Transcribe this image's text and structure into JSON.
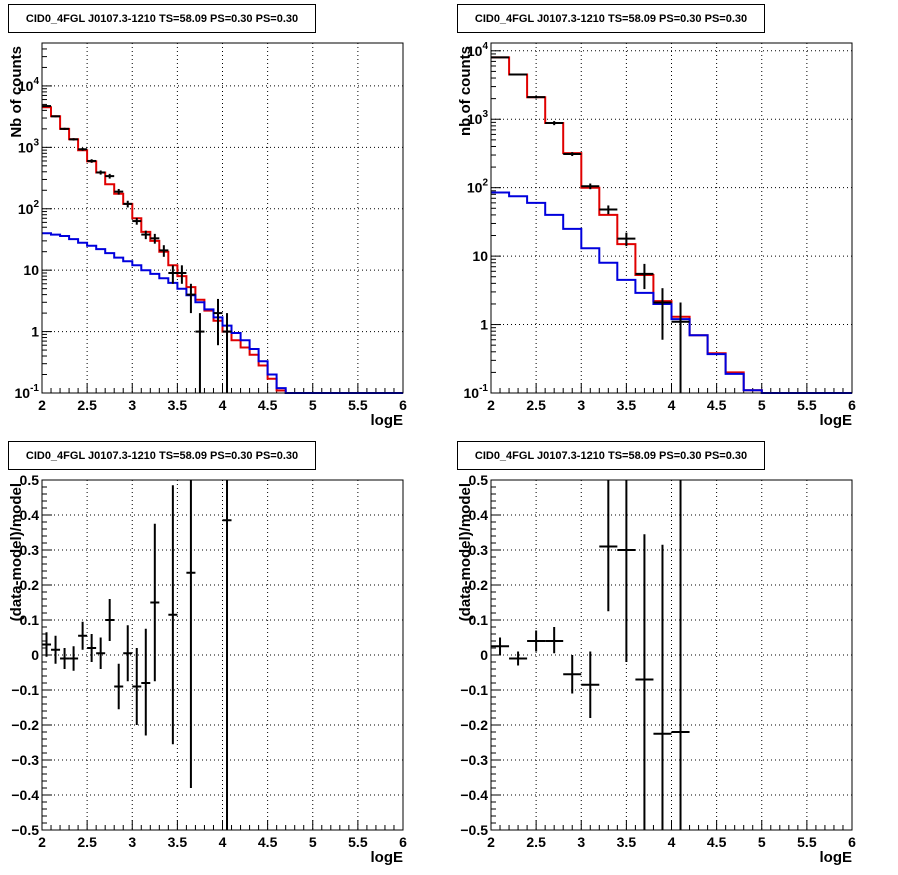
{
  "chart_data": [
    {
      "id": "top-left",
      "type": "line",
      "title": "CID0_4FGL J0107.3-1210 TS=58.09 PS=0.30 PS=0.30",
      "xlabel": "logE",
      "ylabel": "Nb of counts",
      "xlim": [
        2,
        6
      ],
      "ylim": [
        0.1,
        50000
      ],
      "ylog": true,
      "grid": true,
      "xticks": [
        "2",
        "2.5",
        "3",
        "3.5",
        "4",
        "4.5",
        "5",
        "5.5",
        "6"
      ],
      "yticks": [
        {
          "v": 0.1,
          "base": "10",
          "exp": "-1"
        },
        {
          "v": 1,
          "base": "1"
        },
        {
          "v": 10,
          "base": "10"
        },
        {
          "v": 100,
          "base": "10",
          "exp": "2"
        },
        {
          "v": 1000,
          "base": "10",
          "exp": "3"
        },
        {
          "v": 10000,
          "base": "10",
          "exp": "4"
        }
      ],
      "bin_edges": [
        2,
        2.1,
        2.2,
        2.3,
        2.4,
        2.5,
        2.6,
        2.7,
        2.8,
        2.9,
        3.0,
        3.1,
        3.2,
        3.3,
        3.4,
        3.5,
        3.6,
        3.7,
        3.8,
        3.9,
        4.0,
        4.1,
        4.2,
        4.3,
        4.4,
        4.5,
        4.6,
        4.7,
        4.8,
        4.9,
        5.0,
        5.1,
        5.2,
        5.3,
        5.4,
        5.5,
        5.6,
        5.7,
        5.8,
        5.9,
        6.0
      ],
      "series": [
        {
          "color": "#e00000",
          "values": [
            4500,
            3200,
            2000,
            1350,
            900,
            590,
            390,
            250,
            175,
            120,
            70,
            42,
            30,
            20,
            12,
            8,
            5.3,
            3.3,
            2.2,
            1.5,
            1.0,
            0.72,
            0.55,
            0.42,
            0.28,
            0.17,
            0.11,
            0.1,
            0.1,
            0.1,
            0.1,
            0.1,
            0.1,
            0.1,
            0.1,
            0.1,
            0.1,
            0.1,
            0.1,
            0.1
          ]
        },
        {
          "color": "#0000dd",
          "values": [
            40,
            38,
            36,
            32,
            28,
            25,
            22,
            19,
            16,
            14,
            12,
            10,
            8.7,
            7.4,
            6.2,
            5.0,
            3.9,
            3.0,
            2.3,
            1.7,
            1.25,
            0.95,
            0.72,
            0.52,
            0.33,
            0.2,
            0.12,
            0.1,
            0.1,
            0.1,
            0.1,
            0.1,
            0.1,
            0.1,
            0.1,
            0.1,
            0.1,
            0.1,
            0.1,
            0.1
          ]
        }
      ],
      "points": [
        {
          "x": 2.05,
          "y": 4700,
          "dx": 0.05,
          "lo": 4560,
          "hi": 4840
        },
        {
          "x": 2.15,
          "y": 3200,
          "dx": 0.05,
          "lo": 3090,
          "hi": 3310
        },
        {
          "x": 2.25,
          "y": 2000,
          "dx": 0.05,
          "lo": 1920,
          "hi": 2080
        },
        {
          "x": 2.35,
          "y": 1350,
          "dx": 0.05,
          "lo": 1290,
          "hi": 1410
        },
        {
          "x": 2.45,
          "y": 930,
          "dx": 0.05,
          "lo": 880,
          "hi": 980
        },
        {
          "x": 2.55,
          "y": 600,
          "dx": 0.05,
          "lo": 560,
          "hi": 640
        },
        {
          "x": 2.65,
          "y": 390,
          "dx": 0.05,
          "lo": 360,
          "hi": 420
        },
        {
          "x": 2.75,
          "y": 340,
          "dx": 0.05,
          "lo": 310,
          "hi": 370
        },
        {
          "x": 2.85,
          "y": 190,
          "dx": 0.05,
          "lo": 170,
          "hi": 210
        },
        {
          "x": 2.95,
          "y": 120,
          "dx": 0.05,
          "lo": 105,
          "hi": 135
        },
        {
          "x": 3.05,
          "y": 63,
          "dx": 0.05,
          "lo": 55,
          "hi": 71
        },
        {
          "x": 3.15,
          "y": 38,
          "dx": 0.05,
          "lo": 32,
          "hi": 44
        },
        {
          "x": 3.25,
          "y": 33,
          "dx": 0.05,
          "lo": 27,
          "hi": 39
        },
        {
          "x": 3.35,
          "y": 21,
          "dx": 0.05,
          "lo": 16.5,
          "hi": 25.5
        },
        {
          "x": 3.45,
          "y": 9,
          "dx": 0.05,
          "lo": 6,
          "hi": 12
        },
        {
          "x": 3.55,
          "y": 9,
          "dx": 0.05,
          "lo": 6,
          "hi": 12
        },
        {
          "x": 3.65,
          "y": 4,
          "dx": 0.05,
          "lo": 2,
          "hi": 6
        },
        {
          "x": 3.75,
          "y": 1,
          "dx": 0.05,
          "lo": 0.1,
          "hi": 2
        },
        {
          "x": 3.95,
          "y": 2,
          "dx": 0.05,
          "lo": 0.6,
          "hi": 3.4
        },
        {
          "x": 4.05,
          "y": 1,
          "dx": 0.05,
          "lo": 0.1,
          "hi": 2
        }
      ]
    },
    {
      "id": "top-right",
      "type": "line",
      "title": "CID0_4FGL J0107.3-1210 TS=58.09 PS=0.30 PS=0.30",
      "xlabel": "logE",
      "ylabel": "nb of counts",
      "xlim": [
        2,
        6
      ],
      "ylim": [
        0.1,
        13000
      ],
      "ylog": true,
      "grid": true,
      "xticks": [
        "2",
        "2.5",
        "3",
        "3.5",
        "4",
        "4.5",
        "5",
        "5.5",
        "6"
      ],
      "yticks": [
        {
          "v": 0.1,
          "base": "10",
          "exp": "-1"
        },
        {
          "v": 1,
          "base": "1"
        },
        {
          "v": 10,
          "base": "10"
        },
        {
          "v": 100,
          "base": "10",
          "exp": "2"
        },
        {
          "v": 1000,
          "base": "10",
          "exp": "3"
        },
        {
          "v": 10000,
          "base": "10",
          "exp": "4"
        }
      ],
      "bin_edges": [
        2,
        2.2,
        2.4,
        2.6,
        2.8,
        3.0,
        3.2,
        3.4,
        3.6,
        3.8,
        4.0,
        4.2,
        4.4,
        4.6,
        4.8,
        5.0,
        5.2,
        5.4,
        5.6,
        5.8,
        6.0
      ],
      "series": [
        {
          "color": "#e00000",
          "values": [
            8000,
            4500,
            2100,
            880,
            320,
            100,
            40,
            15,
            5.3,
            2.2,
            1.3,
            0.7,
            0.38,
            0.2,
            0.11,
            0.1,
            0.1,
            0.1,
            0.1,
            0.1
          ]
        },
        {
          "color": "#0000dd",
          "values": [
            85,
            75,
            60,
            40,
            25,
            13,
            8,
            4.5,
            2.9,
            2.0,
            1.2,
            0.7,
            0.37,
            0.19,
            0.11,
            0.1,
            0.1,
            0.1,
            0.1,
            0.1
          ]
        }
      ],
      "points": [
        {
          "x": 2.1,
          "y": 8000,
          "dx": 0.1,
          "lo": 7820,
          "hi": 8180
        },
        {
          "x": 2.3,
          "y": 4500,
          "dx": 0.1,
          "lo": 4370,
          "hi": 4630
        },
        {
          "x": 2.5,
          "y": 2100,
          "dx": 0.1,
          "lo": 2010,
          "hi": 2190
        },
        {
          "x": 2.7,
          "y": 880,
          "dx": 0.1,
          "lo": 820,
          "hi": 940
        },
        {
          "x": 2.9,
          "y": 310,
          "dx": 0.1,
          "lo": 290,
          "hi": 330
        },
        {
          "x": 3.1,
          "y": 105,
          "dx": 0.1,
          "lo": 95,
          "hi": 115
        },
        {
          "x": 3.3,
          "y": 48,
          "dx": 0.1,
          "lo": 41,
          "hi": 55
        },
        {
          "x": 3.5,
          "y": 18,
          "dx": 0.1,
          "lo": 14,
          "hi": 22
        },
        {
          "x": 3.7,
          "y": 5.5,
          "dx": 0.1,
          "lo": 3.3,
          "hi": 7.7
        },
        {
          "x": 3.9,
          "y": 2.1,
          "dx": 0.1,
          "lo": 0.6,
          "hi": 3.4
        },
        {
          "x": 4.1,
          "y": 1.1,
          "dx": 0.1,
          "lo": 0.1,
          "hi": 2.1
        }
      ]
    },
    {
      "id": "bottom-left",
      "type": "scatter",
      "title": "CID0_4FGL J0107.3-1210 TS=58.09 PS=0.30 PS=0.30",
      "xlabel": "logE",
      "ylabel": "(data-model)/model",
      "xlim": [
        2,
        6
      ],
      "ylim": [
        -0.5,
        0.5
      ],
      "ylog": false,
      "grid": true,
      "xticks": [
        "2",
        "2.5",
        "3",
        "3.5",
        "4",
        "4.5",
        "5",
        "5.5",
        "6"
      ],
      "yticks": [
        {
          "v": -0.5,
          "base": "−0.5"
        },
        {
          "v": -0.4,
          "base": "−0.4"
        },
        {
          "v": -0.3,
          "base": "−0.3"
        },
        {
          "v": -0.2,
          "base": "−0.2"
        },
        {
          "v": -0.1,
          "base": "−0.1"
        },
        {
          "v": 0,
          "base": "0"
        },
        {
          "v": 0.1,
          "base": "0.1"
        },
        {
          "v": 0.2,
          "base": "0.2"
        },
        {
          "v": 0.3,
          "base": "0.3"
        },
        {
          "v": 0.4,
          "base": "0.4"
        },
        {
          "v": 0.5,
          "base": "0.5"
        }
      ],
      "points": [
        {
          "x": 2.05,
          "y": 0.03,
          "dx": 0.05,
          "lo": -0.005,
          "hi": 0.065
        },
        {
          "x": 2.15,
          "y": 0.015,
          "dx": 0.05,
          "lo": -0.025,
          "hi": 0.055
        },
        {
          "x": 2.25,
          "y": -0.01,
          "dx": 0.05,
          "lo": -0.04,
          "hi": 0.02
        },
        {
          "x": 2.35,
          "y": -0.01,
          "dx": 0.05,
          "lo": -0.045,
          "hi": 0.025
        },
        {
          "x": 2.45,
          "y": 0.055,
          "dx": 0.05,
          "lo": 0.015,
          "hi": 0.095
        },
        {
          "x": 2.55,
          "y": 0.02,
          "dx": 0.05,
          "lo": -0.02,
          "hi": 0.06
        },
        {
          "x": 2.65,
          "y": 0.005,
          "dx": 0.05,
          "lo": -0.04,
          "hi": 0.05
        },
        {
          "x": 2.75,
          "y": 0.1,
          "dx": 0.05,
          "lo": 0.04,
          "hi": 0.16
        },
        {
          "x": 2.85,
          "y": -0.09,
          "dx": 0.05,
          "lo": -0.155,
          "hi": -0.025
        },
        {
          "x": 2.95,
          "y": 0.005,
          "dx": 0.05,
          "lo": -0.075,
          "hi": 0.085
        },
        {
          "x": 3.05,
          "y": -0.09,
          "dx": 0.05,
          "lo": -0.2,
          "hi": 0.02
        },
        {
          "x": 3.15,
          "y": -0.08,
          "dx": 0.05,
          "lo": -0.23,
          "hi": 0.075
        },
        {
          "x": 3.25,
          "y": 0.15,
          "dx": 0.05,
          "lo": -0.075,
          "hi": 0.375
        },
        {
          "x": 3.45,
          "y": 0.115,
          "dx": 0.05,
          "lo": -0.255,
          "hi": 0.485
        },
        {
          "x": 3.65,
          "y": 0.235,
          "dx": 0.05,
          "lo": -0.38,
          "hi": 0.5
        },
        {
          "x": 4.05,
          "y": 0.385,
          "dx": 0.05,
          "lo": -0.5,
          "hi": 0.5
        }
      ]
    },
    {
      "id": "bottom-right",
      "type": "scatter",
      "title": "CID0_4FGL J0107.3-1210 TS=58.09 PS=0.30 PS=0.30",
      "xlabel": "logE",
      "ylabel": "(data-model)/model",
      "xlim": [
        2,
        6
      ],
      "ylim": [
        -0.5,
        0.5
      ],
      "ylog": false,
      "grid": true,
      "xticks": [
        "2",
        "2.5",
        "3",
        "3.5",
        "4",
        "4.5",
        "5",
        "5.5",
        "6"
      ],
      "yticks": [
        {
          "v": -0.5,
          "base": "−0.5"
        },
        {
          "v": -0.4,
          "base": "−0.4"
        },
        {
          "v": -0.3,
          "base": "−0.3"
        },
        {
          "v": -0.2,
          "base": "−0.2"
        },
        {
          "v": -0.1,
          "base": "−0.1"
        },
        {
          "v": 0,
          "base": "0"
        },
        {
          "v": 0.1,
          "base": "0.1"
        },
        {
          "v": 0.2,
          "base": "0.2"
        },
        {
          "v": 0.3,
          "base": "0.3"
        },
        {
          "v": 0.4,
          "base": "0.4"
        },
        {
          "v": 0.5,
          "base": "0.5"
        }
      ],
      "points": [
        {
          "x": 2.1,
          "y": 0.025,
          "dx": 0.1,
          "lo": 0.0,
          "hi": 0.05
        },
        {
          "x": 2.3,
          "y": -0.01,
          "dx": 0.1,
          "lo": -0.03,
          "hi": 0.01
        },
        {
          "x": 2.5,
          "y": 0.04,
          "dx": 0.1,
          "lo": 0.01,
          "hi": 0.07
        },
        {
          "x": 2.7,
          "y": 0.04,
          "dx": 0.1,
          "lo": 0.005,
          "hi": 0.08
        },
        {
          "x": 2.9,
          "y": -0.055,
          "dx": 0.1,
          "lo": -0.11,
          "hi": 0.0
        },
        {
          "x": 3.1,
          "y": -0.085,
          "dx": 0.1,
          "lo": -0.18,
          "hi": 0.01
        },
        {
          "x": 3.3,
          "y": 0.31,
          "dx": 0.1,
          "lo": 0.125,
          "hi": 0.5
        },
        {
          "x": 3.5,
          "y": 0.3,
          "dx": 0.1,
          "lo": -0.02,
          "hi": 0.5
        },
        {
          "x": 3.7,
          "y": -0.07,
          "dx": 0.1,
          "lo": -0.5,
          "hi": 0.345
        },
        {
          "x": 3.9,
          "y": -0.225,
          "dx": 0.1,
          "lo": -0.5,
          "hi": 0.315
        },
        {
          "x": 4.1,
          "y": -0.22,
          "dx": 0.1,
          "lo": -0.5,
          "hi": 0.5
        }
      ]
    }
  ]
}
